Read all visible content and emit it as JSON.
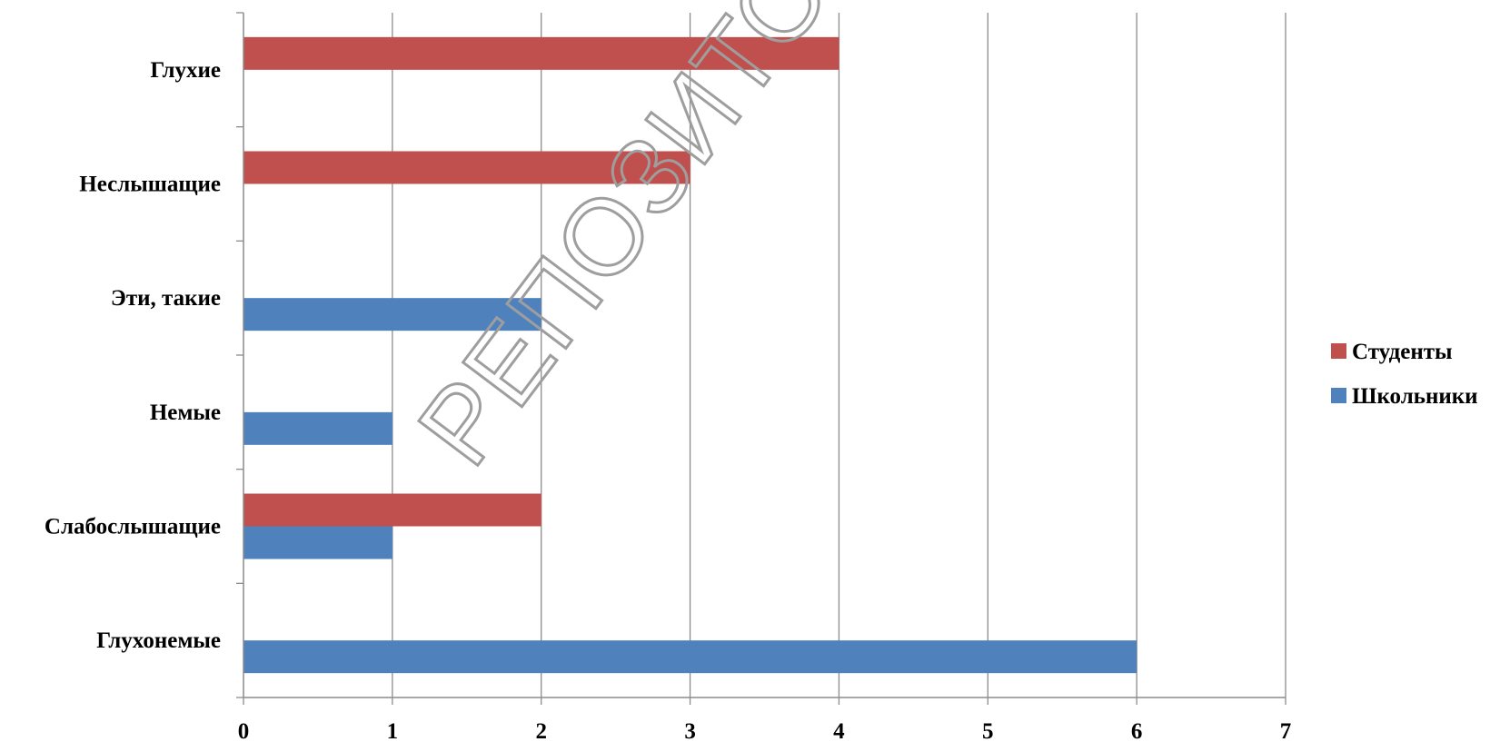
{
  "watermark": "РЕПОЗИТОРИЙ БГПУ",
  "chart_data": {
    "type": "bar",
    "orientation": "horizontal",
    "categories": [
      "Глухонемые",
      "Слабослышащие",
      "Немые",
      "Эти, такие",
      "Неслышащие",
      "Глухие"
    ],
    "series": [
      {
        "name": "Школьники",
        "color": "#4f81bd",
        "values": [
          6,
          1,
          1,
          2,
          0,
          0
        ]
      },
      {
        "name": "Студенты",
        "color": "#c0504d",
        "values": [
          0,
          2,
          0,
          0,
          3,
          4
        ]
      }
    ],
    "xlim": [
      0,
      7
    ],
    "xticks": [
      0,
      1,
      2,
      3,
      4,
      5,
      6,
      7
    ],
    "grid": true,
    "legend": "right",
    "title": "",
    "xlabel": "",
    "ylabel": ""
  }
}
